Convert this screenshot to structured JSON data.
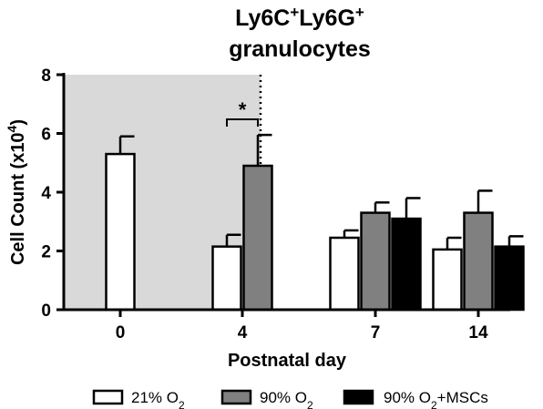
{
  "chart_data": {
    "type": "bar",
    "title_parts": [
      {
        "text": "Ly6C",
        "sup": false
      },
      {
        "text": "+",
        "sup": true
      },
      {
        "text": "Ly6G",
        "sup": false
      },
      {
        "text": "+",
        "sup": true
      }
    ],
    "title_line2": "granulocytes",
    "ylabel": "Cell  Count (x10",
    "ylabel_sup": "4",
    "ylabel_end": ")",
    "xlabel": "Postnatal day",
    "categories": [
      "0",
      "4",
      "7",
      "14"
    ],
    "ylim": [
      0,
      8
    ],
    "yticks": [
      "0",
      "2",
      "4",
      "6",
      "8"
    ],
    "series": [
      {
        "name": "21% O",
        "name_sub": "2",
        "name_suffix": "",
        "color": "#ffffff",
        "values": [
          5.3,
          2.15,
          2.45,
          2.05
        ],
        "errors": [
          0.6,
          0.4,
          0.25,
          0.4
        ]
      },
      {
        "name": "90% O",
        "name_sub": "2",
        "name_suffix": "",
        "color": "#808080",
        "values": [
          null,
          4.9,
          3.3,
          3.3
        ],
        "errors": [
          null,
          1.05,
          0.35,
          0.75
        ]
      },
      {
        "name": "90% O",
        "name_sub": "2",
        "name_suffix": "+MSCs",
        "color": "#000000",
        "values": [
          null,
          null,
          3.1,
          2.15
        ],
        "errors": [
          null,
          null,
          0.7,
          0.35
        ]
      }
    ],
    "shaded_region": {
      "from_category": "0",
      "to_category": "4",
      "color": "#d9d9d9"
    },
    "significance": [
      {
        "category": "4",
        "series_from": 0,
        "series_to": 1,
        "label": "*"
      }
    ],
    "grid": false,
    "legend_position": "bottom"
  }
}
